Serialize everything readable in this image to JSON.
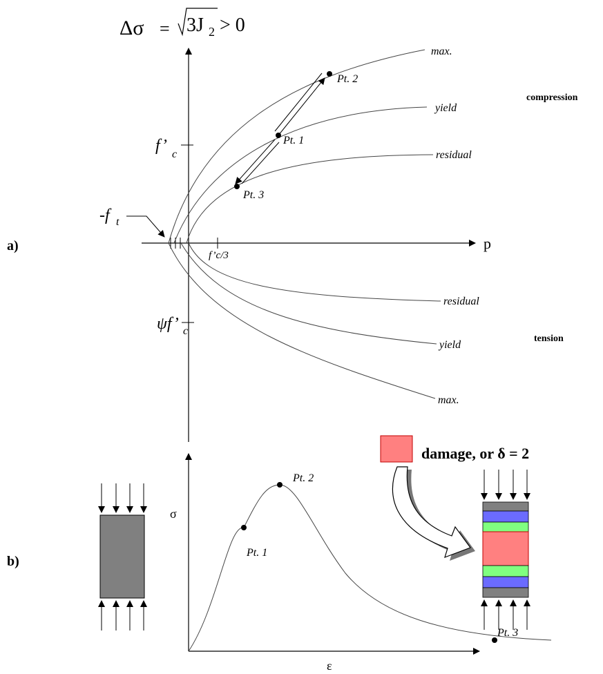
{
  "part_a": {
    "label": "a)",
    "ylabel_html": "Δσ = √3J₂ > 0",
    "ylabel_lhs": "Δσ",
    "ylabel_eq": "=",
    "ylabel_sqrt_arg": "3J",
    "ylabel_sub": "2",
    "ylabel_rhs": "> 0",
    "xlabel": "p",
    "region_compression": "compression",
    "region_tension": "tension",
    "tick_fc": "f’",
    "tick_fc_sub": "c",
    "tick_psi": "ψf’",
    "tick_psi_sub": "c",
    "tick_ft": "-f",
    "tick_ft_sub": "t",
    "tick_fc3": "f’c/3",
    "curve_labels_top": [
      "max.",
      "yield",
      "residual"
    ],
    "curve_labels_bottom": [
      "residual",
      "yield",
      "max."
    ],
    "points": [
      "Pt. 2",
      "Pt. 1",
      "Pt. 3"
    ]
  },
  "part_b": {
    "label": "b)",
    "ylabel": "σ",
    "xlabel": "ε",
    "points": [
      "Pt. 2",
      "Pt. 1",
      "Pt. 3"
    ],
    "legend": "damage, or δ = 2",
    "colors": {
      "specimen": "#808080",
      "damage": "#ff8080",
      "layer_blue": "#6b6bff",
      "layer_green": "#80ff80"
    }
  }
}
